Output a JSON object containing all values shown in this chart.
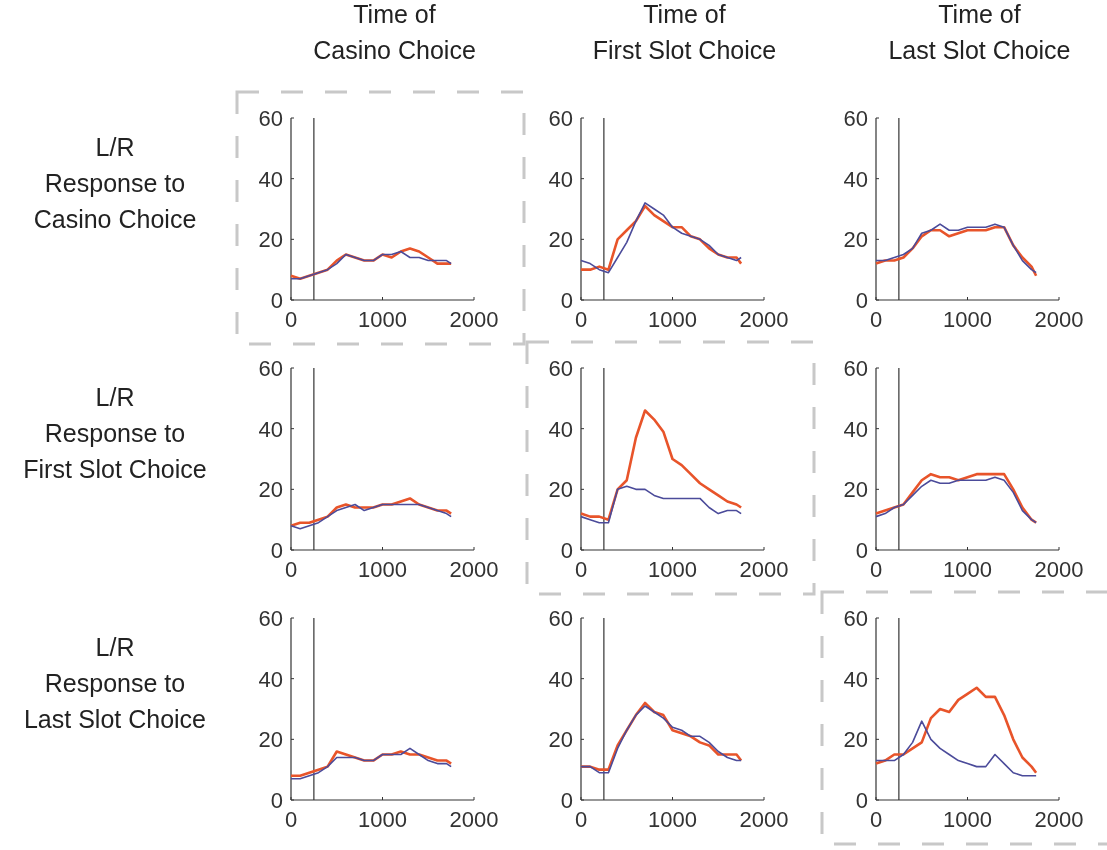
{
  "chart_data": [
    {
      "type": "line",
      "title": "Time of\nCasino Choice",
      "ylabel": "L/R\nResponse to\nCasino Choice",
      "x": [
        0,
        100,
        200,
        300,
        400,
        500,
        600,
        700,
        800,
        900,
        1000,
        1100,
        1200,
        1300,
        1400,
        1500,
        1600,
        1700,
        1750
      ],
      "xlim": [
        0,
        2000
      ],
      "xticks": [
        0,
        1000,
        2000
      ],
      "ylim": [
        0,
        60
      ],
      "yticks": [
        0,
        20,
        40,
        60
      ],
      "grid": false,
      "ref_lines": [
        {
          "axis": "x",
          "value": 250,
          "color": "#333333"
        }
      ],
      "series": [
        {
          "color": "#e8542a",
          "values": [
            8,
            7,
            8,
            9,
            10,
            13,
            15,
            14,
            13,
            13,
            15,
            14,
            16,
            17,
            16,
            14,
            12,
            12,
            12
          ]
        },
        {
          "color": "#4b4b9a",
          "values": [
            7,
            7,
            8,
            9,
            10,
            12,
            15,
            14,
            13,
            13,
            15,
            15,
            16,
            14,
            14,
            13,
            13,
            13,
            12
          ]
        }
      ]
    },
    {
      "type": "line",
      "title": "Time of\nFirst Slot Choice",
      "x": [
        0,
        100,
        200,
        300,
        400,
        500,
        600,
        700,
        800,
        900,
        1000,
        1100,
        1200,
        1300,
        1400,
        1500,
        1600,
        1700,
        1750
      ],
      "xlim": [
        0,
        2000
      ],
      "xticks": [
        0,
        1000,
        2000
      ],
      "ylim": [
        0,
        60
      ],
      "yticks": [
        0,
        20,
        40,
        60
      ],
      "grid": false,
      "ref_lines": [
        {
          "axis": "x",
          "value": 250,
          "color": "#333333"
        }
      ],
      "series": [
        {
          "color": "#e8542a",
          "values": [
            10,
            10,
            11,
            10,
            20,
            23,
            26,
            31,
            28,
            26,
            24,
            24,
            21,
            20,
            17,
            15,
            14,
            14,
            12
          ]
        },
        {
          "color": "#4b4b9a",
          "values": [
            13,
            12,
            10,
            9,
            14,
            19,
            26,
            32,
            30,
            28,
            24,
            22,
            21,
            20,
            18,
            15,
            14,
            13,
            14
          ]
        }
      ]
    },
    {
      "type": "line",
      "title": "Time of\nLast Slot Choice",
      "x": [
        0,
        100,
        200,
        300,
        400,
        500,
        600,
        700,
        800,
        900,
        1000,
        1100,
        1200,
        1300,
        1400,
        1500,
        1600,
        1700,
        1750
      ],
      "xlim": [
        0,
        2000
      ],
      "xticks": [
        0,
        1000,
        2000
      ],
      "ylim": [
        0,
        60
      ],
      "yticks": [
        0,
        20,
        40,
        60
      ],
      "grid": false,
      "ref_lines": [
        {
          "axis": "x",
          "value": 250,
          "color": "#333333"
        }
      ],
      "series": [
        {
          "color": "#e8542a",
          "values": [
            12,
            13,
            13,
            14,
            17,
            21,
            23,
            23,
            21,
            22,
            23,
            23,
            23,
            24,
            24,
            18,
            14,
            11,
            8
          ]
        },
        {
          "color": "#4b4b9a",
          "values": [
            13,
            13,
            14,
            15,
            17,
            22,
            23,
            25,
            23,
            23,
            24,
            24,
            24,
            25,
            24,
            18,
            13,
            10,
            9
          ]
        }
      ]
    },
    {
      "type": "line",
      "ylabel": "L/R\nResponse to\nFirst Slot Choice",
      "x": [
        0,
        100,
        200,
        300,
        400,
        500,
        600,
        700,
        800,
        900,
        1000,
        1100,
        1200,
        1300,
        1400,
        1500,
        1600,
        1700,
        1750
      ],
      "xlim": [
        0,
        2000
      ],
      "xticks": [
        0,
        1000,
        2000
      ],
      "ylim": [
        0,
        60
      ],
      "yticks": [
        0,
        20,
        40,
        60
      ],
      "grid": false,
      "ref_lines": [
        {
          "axis": "x",
          "value": 250,
          "color": "#333333"
        }
      ],
      "series": [
        {
          "color": "#e8542a",
          "values": [
            8,
            9,
            9,
            10,
            11,
            14,
            15,
            14,
            14,
            14,
            15,
            15,
            16,
            17,
            15,
            14,
            13,
            13,
            12
          ]
        },
        {
          "color": "#4b4b9a",
          "values": [
            8,
            7,
            8,
            9,
            11,
            13,
            14,
            15,
            13,
            14,
            15,
            15,
            15,
            15,
            15,
            14,
            13,
            12,
            11
          ]
        }
      ]
    },
    {
      "type": "line",
      "x": [
        0,
        100,
        200,
        300,
        400,
        500,
        600,
        700,
        800,
        900,
        1000,
        1100,
        1200,
        1300,
        1400,
        1500,
        1600,
        1700,
        1750
      ],
      "xlim": [
        0,
        2000
      ],
      "xticks": [
        0,
        1000,
        2000
      ],
      "ylim": [
        0,
        60
      ],
      "yticks": [
        0,
        20,
        40,
        60
      ],
      "grid": false,
      "ref_lines": [
        {
          "axis": "x",
          "value": 250,
          "color": "#333333"
        }
      ],
      "series": [
        {
          "color": "#e8542a",
          "values": [
            12,
            11,
            11,
            10,
            20,
            23,
            37,
            46,
            43,
            39,
            30,
            28,
            25,
            22,
            20,
            18,
            16,
            15,
            14
          ]
        },
        {
          "color": "#4b4b9a",
          "values": [
            11,
            10,
            9,
            9,
            20,
            21,
            20,
            20,
            18,
            17,
            17,
            17,
            17,
            17,
            14,
            12,
            13,
            13,
            12
          ]
        }
      ]
    },
    {
      "type": "line",
      "x": [
        0,
        100,
        200,
        300,
        400,
        500,
        600,
        700,
        800,
        900,
        1000,
        1100,
        1200,
        1300,
        1400,
        1500,
        1600,
        1700,
        1750
      ],
      "xlim": [
        0,
        2000
      ],
      "xticks": [
        0,
        1000,
        2000
      ],
      "ylim": [
        0,
        60
      ],
      "yticks": [
        0,
        20,
        40,
        60
      ],
      "grid": false,
      "ref_lines": [
        {
          "axis": "x",
          "value": 250,
          "color": "#333333"
        }
      ],
      "series": [
        {
          "color": "#e8542a",
          "values": [
            12,
            13,
            14,
            15,
            19,
            23,
            25,
            24,
            24,
            23,
            24,
            25,
            25,
            25,
            25,
            20,
            14,
            10,
            9
          ]
        },
        {
          "color": "#4b4b9a",
          "values": [
            11,
            12,
            14,
            15,
            18,
            21,
            23,
            22,
            22,
            23,
            23,
            23,
            23,
            24,
            23,
            19,
            13,
            10,
            9
          ]
        }
      ]
    },
    {
      "type": "line",
      "ylabel": "L/R\nResponse to\nLast Slot Choice",
      "x": [
        0,
        100,
        200,
        300,
        400,
        500,
        600,
        700,
        800,
        900,
        1000,
        1100,
        1200,
        1300,
        1400,
        1500,
        1600,
        1700,
        1750
      ],
      "xlim": [
        0,
        2000
      ],
      "xticks": [
        0,
        1000,
        2000
      ],
      "ylim": [
        0,
        60
      ],
      "yticks": [
        0,
        20,
        40,
        60
      ],
      "grid": false,
      "ref_lines": [
        {
          "axis": "x",
          "value": 250,
          "color": "#333333"
        }
      ],
      "series": [
        {
          "color": "#e8542a",
          "values": [
            8,
            8,
            9,
            10,
            11,
            16,
            15,
            14,
            13,
            13,
            15,
            15,
            16,
            15,
            15,
            14,
            13,
            13,
            12
          ]
        },
        {
          "color": "#4b4b9a",
          "values": [
            7,
            7,
            8,
            9,
            11,
            14,
            14,
            14,
            13,
            13,
            15,
            15,
            15,
            17,
            15,
            13,
            12,
            12,
            11
          ]
        }
      ]
    },
    {
      "type": "line",
      "x": [
        0,
        100,
        200,
        300,
        400,
        500,
        600,
        700,
        800,
        900,
        1000,
        1100,
        1200,
        1300,
        1400,
        1500,
        1600,
        1700,
        1750
      ],
      "xlim": [
        0,
        2000
      ],
      "xticks": [
        0,
        1000,
        2000
      ],
      "ylim": [
        0,
        60
      ],
      "yticks": [
        0,
        20,
        40,
        60
      ],
      "grid": false,
      "ref_lines": [
        {
          "axis": "x",
          "value": 250,
          "color": "#333333"
        }
      ],
      "series": [
        {
          "color": "#e8542a",
          "values": [
            11,
            11,
            10,
            10,
            18,
            23,
            28,
            32,
            29,
            28,
            23,
            22,
            21,
            19,
            18,
            15,
            15,
            15,
            13
          ]
        },
        {
          "color": "#4b4b9a",
          "values": [
            11,
            11,
            9,
            9,
            17,
            23,
            28,
            31,
            29,
            27,
            24,
            23,
            21,
            21,
            19,
            16,
            14,
            13,
            13
          ]
        }
      ]
    },
    {
      "type": "line",
      "x": [
        0,
        100,
        200,
        300,
        400,
        500,
        600,
        700,
        800,
        900,
        1000,
        1100,
        1200,
        1300,
        1400,
        1500,
        1600,
        1700,
        1750
      ],
      "xlim": [
        0,
        2000
      ],
      "xticks": [
        0,
        1000,
        2000
      ],
      "ylim": [
        0,
        60
      ],
      "yticks": [
        0,
        20,
        40,
        60
      ],
      "grid": false,
      "ref_lines": [
        {
          "axis": "x",
          "value": 250,
          "color": "#333333"
        }
      ],
      "series": [
        {
          "color": "#e8542a",
          "values": [
            12,
            13,
            15,
            15,
            17,
            19,
            27,
            30,
            29,
            33,
            35,
            37,
            34,
            34,
            28,
            20,
            14,
            11,
            9
          ]
        },
        {
          "color": "#4b4b9a",
          "values": [
            13,
            13,
            13,
            15,
            19,
            26,
            20,
            17,
            15,
            13,
            12,
            11,
            11,
            15,
            12,
            9,
            8,
            8,
            8
          ]
        }
      ]
    }
  ]
}
